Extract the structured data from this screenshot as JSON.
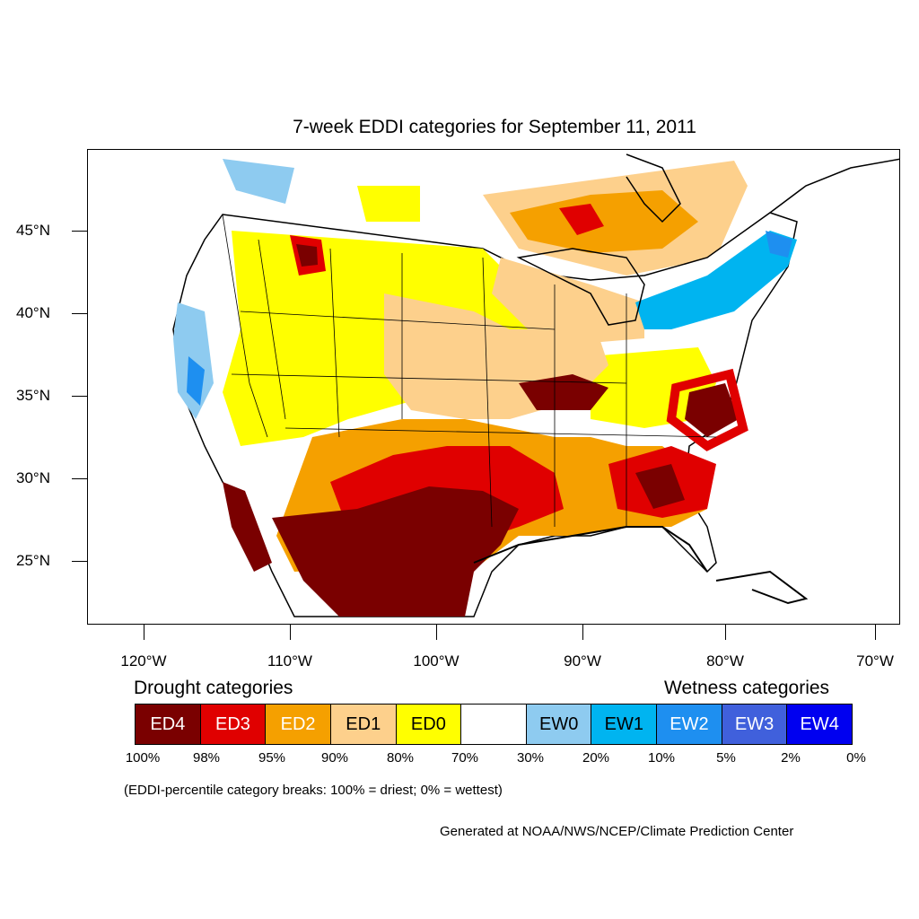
{
  "title": "7-week EDDI categories for September 11, 2011",
  "axes": {
    "lat_labels": [
      "45°N",
      "40°N",
      "35°N",
      "30°N",
      "25°N"
    ],
    "lon_labels": [
      "120°W",
      "110°W",
      "100°W",
      "90°W",
      "80°W",
      "70°W"
    ]
  },
  "legend": {
    "drought_heading": "Drought categories",
    "wetness_heading": "Wetness categories",
    "categories": [
      {
        "label": "ED4",
        "color": "#7a0000",
        "text_color": "#ffffff"
      },
      {
        "label": "ED3",
        "color": "#e00000",
        "text_color": "#ffffff"
      },
      {
        "label": "ED2",
        "color": "#f5a000",
        "text_color": "#ffffff"
      },
      {
        "label": "ED1",
        "color": "#fdd08c",
        "text_color": "#000000"
      },
      {
        "label": "ED0",
        "color": "#ffff00",
        "text_color": "#000000"
      },
      {
        "label": "",
        "color": "#ffffff",
        "text_color": "#000000"
      },
      {
        "label": "EW0",
        "color": "#8ecbf0",
        "text_color": "#000000"
      },
      {
        "label": "EW1",
        "color": "#00b4f0",
        "text_color": "#000000"
      },
      {
        "label": "EW2",
        "color": "#1e8ff0",
        "text_color": "#ffffff"
      },
      {
        "label": "EW3",
        "color": "#4060dc",
        "text_color": "#ffffff"
      },
      {
        "label": "EW4",
        "color": "#0000f0",
        "text_color": "#ffffff"
      }
    ],
    "breaks": [
      "100%",
      "98%",
      "95%",
      "90%",
      "80%",
      "70%",
      "30%",
      "20%",
      "10%",
      "5%",
      "2%",
      "0%"
    ]
  },
  "note": "(EDDI-percentile category breaks: 100% = driest; 0% = wettest)",
  "credit": "Generated at NOAA/NWS/NCEP/Climate Prediction Center"
}
